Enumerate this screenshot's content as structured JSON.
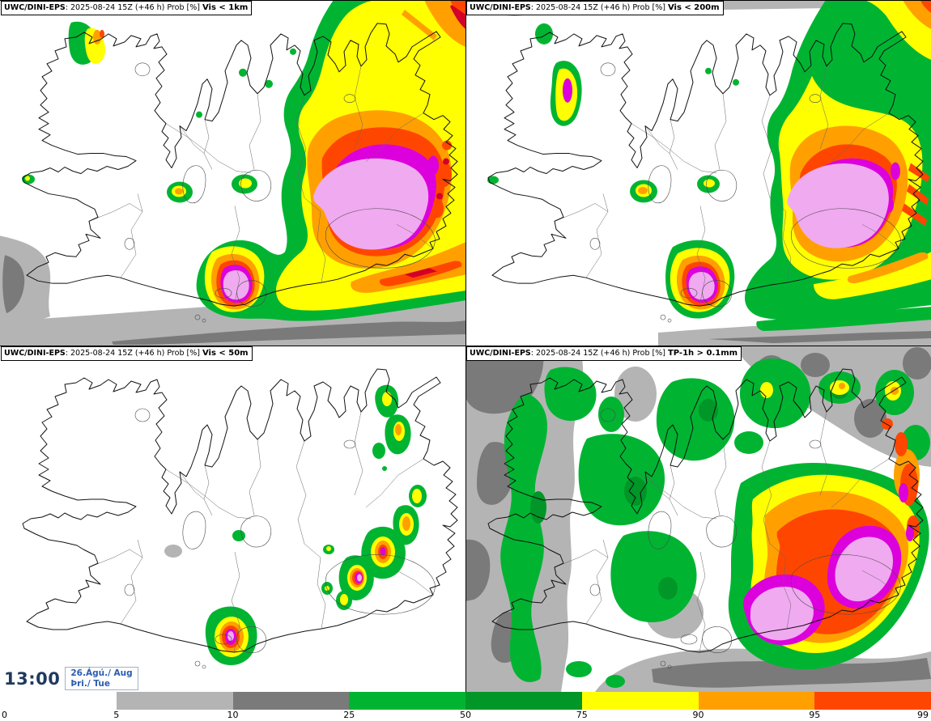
{
  "panels": [
    {
      "id": "vis-1km",
      "model": "UWC/DINI-EPS",
      "meta": ": 2025-08-24 15Z (+46 h) Prob [%] ",
      "param": "Vis < 1km"
    },
    {
      "id": "vis-200m",
      "model": "UWC/DINI-EPS",
      "meta": ": 2025-08-24 15Z (+46 h) Prob [%] ",
      "param": "Vis < 200m"
    },
    {
      "id": "vis-50m",
      "model": "UWC/DINI-EPS",
      "meta": ": 2025-08-24 15Z (+46 h) Prob [%] ",
      "param": "Vis < 50m"
    },
    {
      "id": "tp-1h",
      "model": "UWC/DINI-EPS",
      "meta": ": 2025-08-24 15Z (+46 h) Prob [%] ",
      "param": "TP-1h > 0.1mm"
    }
  ],
  "footer": {
    "time": "13:00",
    "date_line1": "26.Ágú./ Aug",
    "date_line2": "Þri./ Tue"
  },
  "colorbar": {
    "labels": [
      "0",
      "5",
      "10",
      "25",
      "50",
      "75",
      "90",
      "95",
      "99"
    ],
    "segment_colors": [
      "#ffffff",
      "#b4b4b4",
      "#7a7a7a",
      "#00b432",
      "#009628",
      "#ffff00",
      "#ffa000",
      "#ff4600"
    ]
  },
  "palette": {
    "gray_light": "#b4b4b4",
    "gray_dark": "#7a7a7a",
    "green": "#00b432",
    "green_dark": "#009628",
    "yellow": "#ffff00",
    "orange": "#ffa000",
    "red_orange": "#ff4600",
    "crimson": "#d20028",
    "magenta": "#dc00dc",
    "violet": "#f0aaf0"
  },
  "colors": {
    "clock": "#1f3a5f",
    "date_blue": "#2a5db0",
    "date_box_border": "#9fb4c8",
    "coast_line": "#111111",
    "boundary_line": "#666666"
  }
}
